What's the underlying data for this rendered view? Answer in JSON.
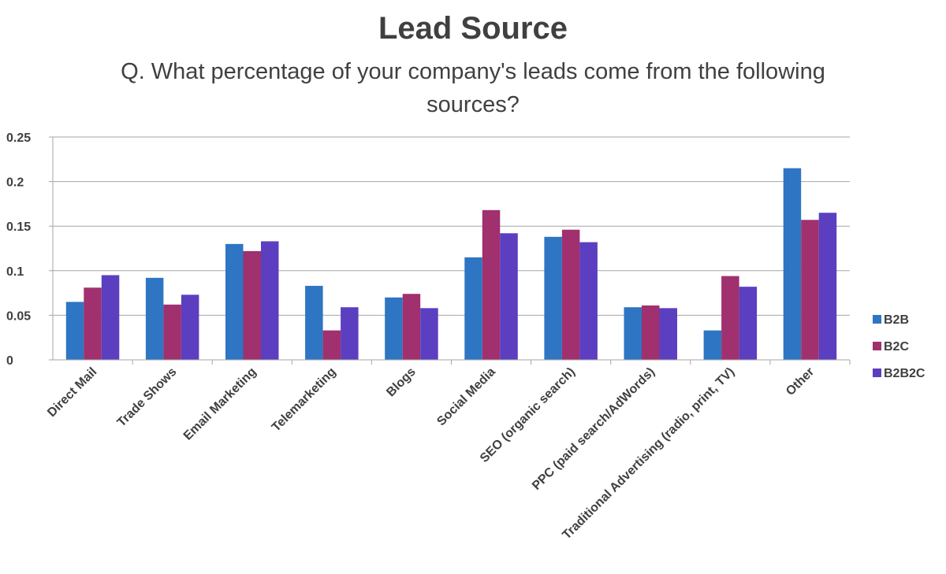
{
  "chart_data": {
    "type": "bar",
    "title": "Lead Source",
    "subtitle": "Q. What percentage of your company's leads come from the following sources?",
    "xlabel": "",
    "ylabel": "",
    "ylim": [
      0,
      0.25
    ],
    "yticks": [
      "0",
      "0.05",
      "0.1",
      "0.15",
      "0.2",
      "0.25"
    ],
    "grid": true,
    "legend_position": "right",
    "categories": [
      "Direct Mail",
      "Trade Shows",
      "Email Marketing",
      "Telemarketing",
      "Blogs",
      "Social Media",
      "SEO (organic search)",
      "PPC (paid search/AdWords)",
      "Traditional Advertising (radio, print, TV)",
      "Other"
    ],
    "series": [
      {
        "name": "B2B",
        "color": "#2E75C3",
        "values": [
          0.065,
          0.092,
          0.13,
          0.083,
          0.07,
          0.115,
          0.138,
          0.059,
          0.033,
          0.215
        ]
      },
      {
        "name": "B2C",
        "color": "#A0306E",
        "values": [
          0.081,
          0.062,
          0.122,
          0.033,
          0.074,
          0.168,
          0.146,
          0.061,
          0.094,
          0.157
        ]
      },
      {
        "name": "B2B2C",
        "color": "#5B3FC0",
        "values": [
          0.095,
          0.073,
          0.133,
          0.059,
          0.058,
          0.142,
          0.132,
          0.058,
          0.082,
          0.165
        ]
      }
    ]
  }
}
